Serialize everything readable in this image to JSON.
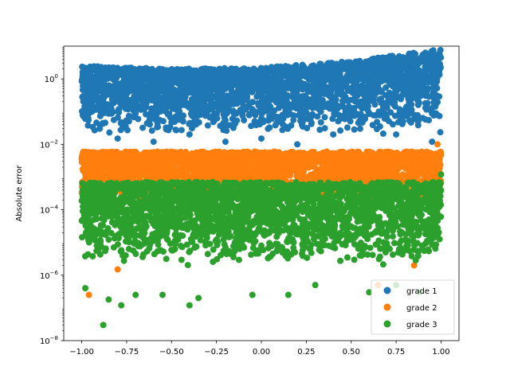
{
  "chart_data": {
    "type": "scatter",
    "title": "",
    "xlabel": "",
    "ylabel": "Absolute error",
    "xlim": [
      -1.1,
      1.1
    ],
    "ylim": [
      1e-08,
      10
    ],
    "yscale": "log",
    "grid": false,
    "legend_position": "bottom-right",
    "x_ticks": [
      -1.0,
      -0.75,
      -0.5,
      -0.25,
      0.0,
      0.25,
      0.5,
      0.75,
      1.0
    ],
    "x_tick_labels": [
      "−1.00",
      "−0.75",
      "−0.50",
      "−0.25",
      "0.00",
      "0.25",
      "0.50",
      "0.75",
      "1.00"
    ],
    "y_ticks": [
      1e-08,
      1e-06,
      0.0001,
      0.01,
      1
    ],
    "y_tick_labels": [
      {
        "base": "10",
        "exp": "−8"
      },
      {
        "base": "10",
        "exp": "−6"
      },
      {
        "base": "10",
        "exp": "−4"
      },
      {
        "base": "10",
        "exp": "−2"
      },
      {
        "base": "10",
        "exp": "0"
      }
    ],
    "series": [
      {
        "name": "grade 1",
        "color": "#1f77b4",
        "x_range": [
          -1.0,
          1.0
        ],
        "typical_upper_edge": [
          [
            -1.0,
            2.5
          ],
          [
            -0.5,
            2.0
          ],
          [
            0.0,
            2.2
          ],
          [
            0.5,
            3.5
          ],
          [
            1.0,
            8.0
          ]
        ],
        "typical_lower_edge": 0.02,
        "outlier_points": [
          [
            -0.98,
            0.06
          ],
          [
            -0.9,
            0.03
          ],
          [
            -0.8,
            0.015
          ],
          [
            -0.6,
            0.012
          ],
          [
            -0.4,
            0.02
          ],
          [
            -0.2,
            0.012
          ],
          [
            0.0,
            0.015
          ],
          [
            0.2,
            0.01
          ],
          [
            0.4,
            0.02
          ],
          [
            0.55,
            0.03
          ],
          [
            0.75,
            0.02
          ],
          [
            0.95,
            0.012
          ]
        ]
      },
      {
        "name": "grade 2",
        "color": "#ff7f0e",
        "x_range": [
          -1.0,
          1.0
        ],
        "typical_upper_edge": 0.006,
        "typical_lower_edge": 0.0002,
        "outlier_points": [
          [
            -0.96,
            2.5e-07
          ],
          [
            -0.8,
            1.5e-06
          ],
          [
            0.65,
            5e-07
          ],
          [
            0.85,
            2e-06
          ],
          [
            0.98,
            0.01
          ]
        ]
      },
      {
        "name": "grade 3",
        "color": "#2ca02c",
        "x_range": [
          -1.0,
          1.0
        ],
        "typical_upper_edge": 0.0007,
        "typical_lower_edge": 2e-06,
        "outlier_points": [
          [
            -0.98,
            4e-07
          ],
          [
            -0.88,
            3e-08
          ],
          [
            -0.85,
            1.8e-07
          ],
          [
            -0.78,
            1.2e-07
          ],
          [
            -0.7,
            2.5e-07
          ],
          [
            -0.55,
            2.5e-07
          ],
          [
            -0.4,
            1.2e-07
          ],
          [
            -0.35,
            2e-07
          ],
          [
            -0.05,
            2.5e-07
          ],
          [
            0.15,
            2.5e-07
          ],
          [
            0.3,
            5e-07
          ],
          [
            0.6,
            3e-07
          ],
          [
            0.75,
            5e-07
          ],
          [
            0.88,
            3e-07
          ],
          [
            1.0,
            0.0012
          ]
        ]
      }
    ]
  }
}
